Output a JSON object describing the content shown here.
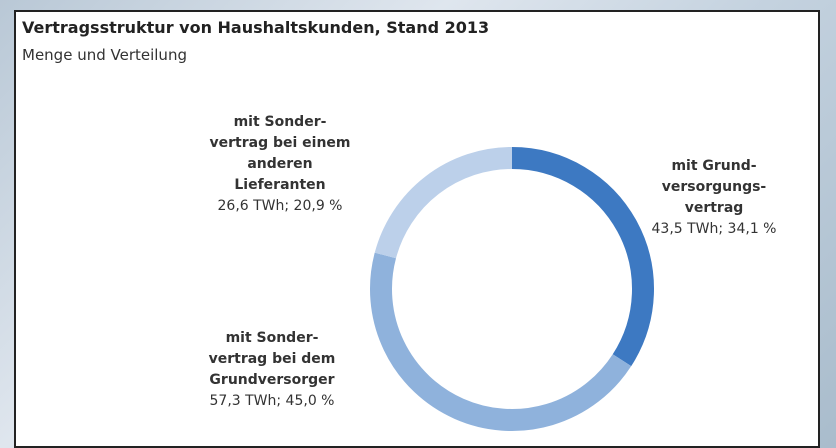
{
  "chart_data": {
    "type": "donut",
    "title": "Vertragsstruktur von Haushaltskunden, Stand 2013",
    "subtitle": "Menge und Verteilung",
    "categories": [
      "mit Grund-\nversorgungs-\nvertrag",
      "mit Sonder-\nvertrag bei dem\nGrundversorger",
      "mit Sonder-\nvertrag bei einem\nanderen\nLieferanten"
    ],
    "values": [
      43.5,
      57.3,
      26.6
    ],
    "value_labels": [
      "43,5 TWh; 34,1 %",
      "57,3 TWh; 45,0 %",
      "26,6 TWh; 20,9 %"
    ],
    "colors": [
      "#3d79c2",
      "#8fb2dc",
      "#bcd0ea"
    ]
  }
}
